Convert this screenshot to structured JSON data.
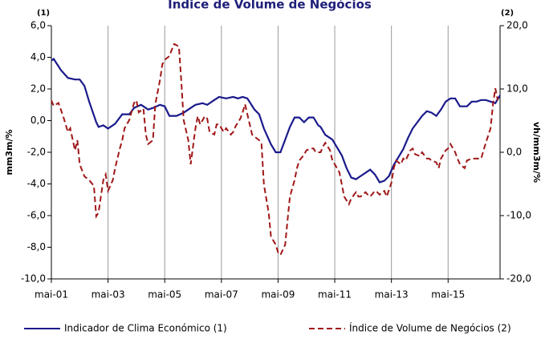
{
  "chart_data": {
    "type": "line",
    "title": "Índice de Volume de Negócios",
    "y_note": "(1)",
    "y2_note": "(2)",
    "ylabel": "mm3m/%",
    "y2label": "vh/mm3m/%",
    "grid": "x",
    "xlim": [
      0,
      190
    ],
    "xticks": [
      {
        "value": 0,
        "label": "mai-01"
      },
      {
        "value": 24,
        "label": "mai-03"
      },
      {
        "value": 48,
        "label": "mai-05"
      },
      {
        "value": 72,
        "label": "mai-07"
      },
      {
        "value": 96,
        "label": "mai-09"
      },
      {
        "value": 120,
        "label": "mai-11"
      },
      {
        "value": 144,
        "label": "mai-13"
      },
      {
        "value": 168,
        "label": "mai-15"
      }
    ],
    "ylim": [
      -10,
      6
    ],
    "yticks": [
      {
        "value": -10,
        "label": "-10,0"
      },
      {
        "value": -8,
        "label": "-8,0"
      },
      {
        "value": -6,
        "label": "-6,0"
      },
      {
        "value": -4,
        "label": "-4,0"
      },
      {
        "value": -2,
        "label": "-2,0"
      },
      {
        "value": 0,
        "label": "0,0"
      },
      {
        "value": 2,
        "label": "2,0"
      },
      {
        "value": 4,
        "label": "4,0"
      },
      {
        "value": 6,
        "label": "6,0"
      }
    ],
    "y2lim": [
      -20,
      20
    ],
    "y2ticks": [
      {
        "value": -20,
        "label": "-20,0"
      },
      {
        "value": -10,
        "label": "-10,0"
      },
      {
        "value": 0,
        "label": "0,0"
      },
      {
        "value": 10,
        "label": "10,0"
      },
      {
        "value": 20,
        "label": "20,0"
      }
    ],
    "series": [
      {
        "name": "Indicador de Clima Económico (1)",
        "color": "#1a1a8c",
        "dash": false,
        "x": [
          0,
          1,
          4,
          7,
          10,
          12,
          14,
          16,
          19,
          20,
          22,
          24,
          27,
          30,
          33,
          35,
          38,
          41,
          43,
          46,
          48,
          50,
          53,
          56,
          59,
          61,
          64,
          66,
          69,
          71,
          74,
          77,
          79,
          81,
          83,
          86,
          88,
          90,
          93,
          95,
          97,
          99,
          101,
          103,
          105,
          107,
          109,
          111,
          113,
          114,
          116,
          119,
          121,
          123,
          125,
          127,
          129,
          131,
          133,
          135,
          137,
          139,
          141,
          143,
          145,
          147,
          149,
          151,
          153,
          155,
          157,
          159,
          161,
          163,
          165,
          167,
          169,
          171,
          173,
          176,
          178,
          180,
          182,
          184,
          186,
          188,
          190
        ],
        "values": [
          3.8,
          3.9,
          3.2,
          2.7,
          2.6,
          2.6,
          2.2,
          1.2,
          -0.1,
          -0.4,
          -0.3,
          -0.5,
          -0.2,
          0.4,
          0.4,
          0.8,
          1.0,
          0.7,
          0.8,
          1.0,
          0.9,
          0.3,
          0.3,
          0.5,
          0.8,
          1.0,
          1.1,
          1.0,
          1.3,
          1.5,
          1.4,
          1.5,
          1.4,
          1.5,
          1.4,
          0.7,
          0.4,
          -0.5,
          -1.5,
          -2.0,
          -2.0,
          -1.2,
          -0.4,
          0.2,
          0.2,
          -0.1,
          0.2,
          0.2,
          -0.3,
          -0.4,
          -0.9,
          -1.2,
          -1.7,
          -2.2,
          -3.0,
          -3.6,
          -3.7,
          -3.5,
          -3.3,
          -3.1,
          -3.4,
          -3.9,
          -3.8,
          -3.5,
          -2.8,
          -2.3,
          -1.8,
          -1.1,
          -0.5,
          -0.1,
          0.3,
          0.6,
          0.5,
          0.3,
          0.7,
          1.2,
          1.4,
          1.4,
          0.9,
          0.9,
          1.2,
          1.2,
          1.3,
          1.3,
          1.2,
          1.1,
          1.6
        ]
      },
      {
        "name": "Índice de Volume de Negócios (2)",
        "color": "#a01818",
        "dash": true,
        "axis": "y2",
        "x": [
          0,
          1,
          3,
          5,
          7,
          8,
          10,
          11,
          12,
          14,
          16,
          18,
          19,
          20,
          22,
          23,
          24,
          26,
          27,
          29,
          30,
          31,
          33,
          35,
          36,
          37,
          39,
          40,
          41,
          43,
          44,
          46,
          47,
          48,
          50,
          51,
          52,
          54,
          55,
          56,
          58,
          59,
          61,
          62,
          63,
          65,
          66,
          67,
          69,
          70,
          71,
          73,
          74,
          76,
          77,
          78,
          80,
          81,
          82,
          84,
          85,
          86,
          88,
          89,
          90,
          92,
          93,
          95,
          96,
          97,
          99,
          100,
          101,
          103,
          104,
          105,
          107,
          108,
          110,
          111,
          112,
          114,
          115,
          116,
          118,
          119,
          120,
          122,
          123,
          124,
          126,
          127,
          129,
          130,
          131,
          133,
          134,
          135,
          137,
          138,
          139,
          141,
          142,
          144,
          145,
          146,
          148,
          149,
          150,
          152,
          153,
          154,
          156,
          157,
          159,
          160,
          161,
          163,
          164,
          165,
          167,
          168,
          169,
          171,
          172,
          173,
          175,
          176,
          178,
          179,
          180,
          182,
          183,
          184,
          186,
          187,
          188,
          189
        ],
        "values": [
          8.2,
          7.3,
          7.8,
          5.7,
          3.2,
          3.8,
          0.3,
          1.9,
          -1.9,
          -3.8,
          -4.4,
          -5.3,
          -10.1,
          -9.5,
          -4.4,
          -3.5,
          -6.1,
          -4.4,
          -2.5,
          0.6,
          1.9,
          3.8,
          5.1,
          7.8,
          8.2,
          6.3,
          6.9,
          2.8,
          1.3,
          1.9,
          7.6,
          11.4,
          13.9,
          14.6,
          15.2,
          16.2,
          17.1,
          16.7,
          11.4,
          5.1,
          1.9,
          -1.9,
          3.8,
          5.7,
          4.4,
          5.7,
          5.3,
          3.2,
          2.8,
          4.4,
          4.4,
          3.2,
          3.8,
          2.8,
          3.2,
          4.1,
          5.3,
          6.3,
          7.6,
          4.4,
          2.8,
          2.5,
          1.9,
          1.3,
          -5.1,
          -9.5,
          -13.3,
          -14.6,
          -15.8,
          -16.2,
          -14.6,
          -10.8,
          -7.0,
          -4.4,
          -2.5,
          -1.3,
          -0.4,
          0.3,
          0.6,
          0.6,
          0,
          0,
          0.9,
          1.5,
          0.3,
          -1.3,
          -1.9,
          -3.2,
          -5.1,
          -7.0,
          -8.2,
          -7.3,
          -6.3,
          -7.0,
          -7.0,
          -6.3,
          -6.7,
          -7.0,
          -6.1,
          -6.3,
          -6.7,
          -6.1,
          -7.0,
          -4.8,
          -2.5,
          -1.3,
          -1.9,
          -1.0,
          -1.3,
          0.3,
          0.6,
          -0.3,
          -0.6,
          0,
          -1.0,
          -1.0,
          -1.3,
          -1.6,
          -2.5,
          -1.0,
          0.3,
          0.6,
          1.3,
          0,
          -1.0,
          -1.9,
          -2.5,
          -1.3,
          -1.0,
          -1.0,
          -1.0,
          -1.0,
          0.3,
          1.5,
          3.8,
          7.6,
          10.1,
          8.2
        ]
      }
    ]
  }
}
